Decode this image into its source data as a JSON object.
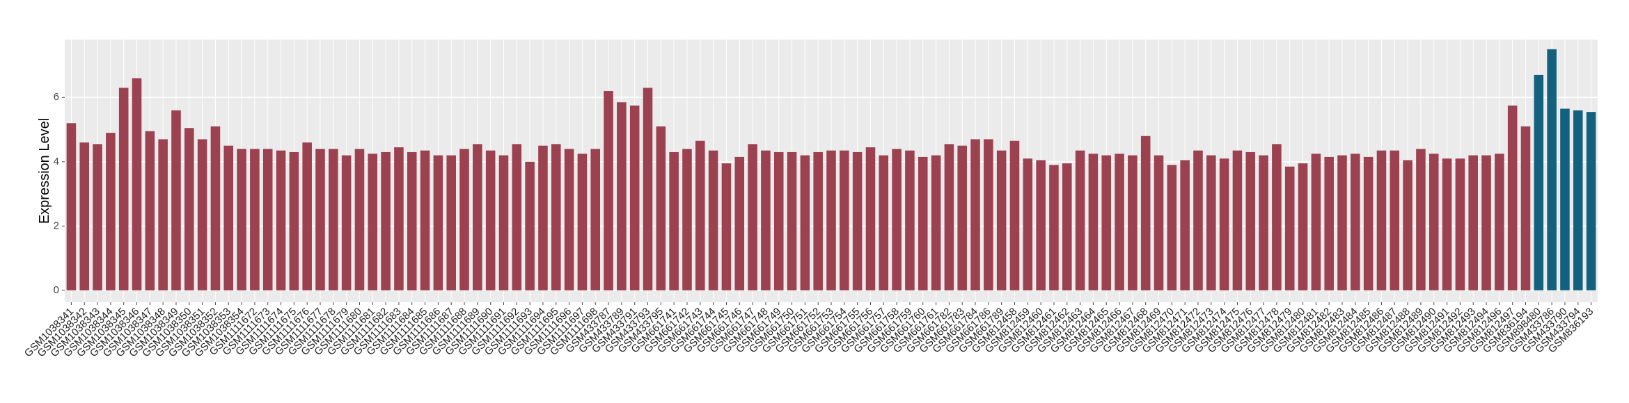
{
  "chart_data": {
    "type": "bar",
    "y_label": "Expression Level",
    "categories": [
      "GSM1038341",
      "GSM1038342",
      "GSM1038343",
      "GSM1038344",
      "GSM1038345",
      "GSM1038346",
      "GSM1038347",
      "GSM1038348",
      "GSM1038349",
      "GSM1038350",
      "GSM1038351",
      "GSM1038352",
      "GSM1038353",
      "GSM1038354",
      "GSM1111672",
      "GSM1111673",
      "GSM1111674",
      "GSM1111675",
      "GSM1111676",
      "GSM1111677",
      "GSM1111678",
      "GSM1111679",
      "GSM1111680",
      "GSM1111681",
      "GSM1111682",
      "GSM1111683",
      "GSM1111684",
      "GSM1111685",
      "GSM1111686",
      "GSM1111687",
      "GSM1111688",
      "GSM1111689",
      "GSM1111690",
      "GSM1111691",
      "GSM1111692",
      "GSM1111693",
      "GSM1111694",
      "GSM1111695",
      "GSM1111696",
      "GSM1111697",
      "GSM1111698",
      "GSM433787",
      "GSM433789",
      "GSM433791",
      "GSM433793",
      "GSM433795",
      "GSM661741",
      "GSM661742",
      "GSM661743",
      "GSM661744",
      "GSM661745",
      "GSM661746",
      "GSM661747",
      "GSM661748",
      "GSM661749",
      "GSM661750",
      "GSM661751",
      "GSM661752",
      "GSM661753",
      "GSM661754",
      "GSM661755",
      "GSM661756",
      "GSM661757",
      "GSM661758",
      "GSM661759",
      "GSM661760",
      "GSM661761",
      "GSM661782",
      "GSM661783",
      "GSM661784",
      "GSM661786",
      "GSM661789",
      "GSM812458",
      "GSM812459",
      "GSM812460",
      "GSM812461",
      "GSM812462",
      "GSM812463",
      "GSM812464",
      "GSM812465",
      "GSM812466",
      "GSM812467",
      "GSM812468",
      "GSM812469",
      "GSM812470",
      "GSM812471",
      "GSM812472",
      "GSM812473",
      "GSM812474",
      "GSM812475",
      "GSM812476",
      "GSM812477",
      "GSM812478",
      "GSM812479",
      "GSM812480",
      "GSM812481",
      "GSM812482",
      "GSM812483",
      "GSM812484",
      "GSM812485",
      "GSM812486",
      "GSM812487",
      "GSM812488",
      "GSM812489",
      "GSM812490",
      "GSM812491",
      "GSM812492",
      "GSM812493",
      "GSM812494",
      "GSM812496",
      "GSM812497",
      "GSM836194",
      "GSM898480",
      "GSM433786",
      "GSM433790",
      "GSM433794",
      "GSM836193"
    ],
    "values": [
      5.2,
      4.6,
      4.55,
      4.9,
      6.3,
      6.6,
      4.95,
      4.7,
      5.6,
      5.05,
      4.7,
      5.1,
      4.5,
      4.4,
      4.4,
      4.4,
      4.35,
      4.3,
      4.6,
      4.4,
      4.4,
      4.2,
      4.4,
      4.25,
      4.3,
      4.45,
      4.3,
      4.35,
      4.2,
      4.2,
      4.4,
      4.55,
      4.35,
      4.2,
      4.55,
      4.0,
      4.5,
      4.55,
      4.4,
      4.25,
      4.4,
      6.2,
      5.85,
      5.75,
      6.3,
      5.1,
      4.3,
      4.4,
      4.65,
      4.35,
      3.95,
      4.15,
      4.55,
      4.35,
      4.3,
      4.3,
      4.2,
      4.3,
      4.35,
      4.35,
      4.3,
      4.45,
      4.2,
      4.4,
      4.35,
      4.15,
      4.2,
      4.55,
      4.5,
      4.7,
      4.7,
      4.35,
      4.65,
      4.1,
      4.05,
      3.9,
      3.95,
      4.35,
      4.25,
      4.2,
      4.25,
      4.2,
      4.8,
      4.2,
      3.9,
      4.05,
      4.35,
      4.2,
      4.1,
      4.35,
      4.3,
      4.2,
      4.55,
      3.85,
      3.95,
      4.25,
      4.15,
      4.2,
      4.25,
      4.15,
      4.35,
      4.35,
      4.05,
      4.4,
      4.25,
      4.1,
      4.1,
      4.2,
      4.2,
      4.25,
      5.75,
      5.1,
      6.7,
      7.5,
      5.65,
      5.6,
      5.55
    ],
    "colors": [
      "#9b4150",
      "#9b4150",
      "#9b4150",
      "#9b4150",
      "#9b4150",
      "#9b4150",
      "#9b4150",
      "#9b4150",
      "#9b4150",
      "#9b4150",
      "#9b4150",
      "#9b4150",
      "#9b4150",
      "#9b4150",
      "#9b4150",
      "#9b4150",
      "#9b4150",
      "#9b4150",
      "#9b4150",
      "#9b4150",
      "#9b4150",
      "#9b4150",
      "#9b4150",
      "#9b4150",
      "#9b4150",
      "#9b4150",
      "#9b4150",
      "#9b4150",
      "#9b4150",
      "#9b4150",
      "#9b4150",
      "#9b4150",
      "#9b4150",
      "#9b4150",
      "#9b4150",
      "#9b4150",
      "#9b4150",
      "#9b4150",
      "#9b4150",
      "#9b4150",
      "#9b4150",
      "#9b4150",
      "#9b4150",
      "#9b4150",
      "#9b4150",
      "#9b4150",
      "#9b4150",
      "#9b4150",
      "#9b4150",
      "#9b4150",
      "#9b4150",
      "#9b4150",
      "#9b4150",
      "#9b4150",
      "#9b4150",
      "#9b4150",
      "#9b4150",
      "#9b4150",
      "#9b4150",
      "#9b4150",
      "#9b4150",
      "#9b4150",
      "#9b4150",
      "#9b4150",
      "#9b4150",
      "#9b4150",
      "#9b4150",
      "#9b4150",
      "#9b4150",
      "#9b4150",
      "#9b4150",
      "#9b4150",
      "#9b4150",
      "#9b4150",
      "#9b4150",
      "#9b4150",
      "#9b4150",
      "#9b4150",
      "#9b4150",
      "#9b4150",
      "#9b4150",
      "#9b4150",
      "#9b4150",
      "#9b4150",
      "#9b4150",
      "#9b4150",
      "#9b4150",
      "#9b4150",
      "#9b4150",
      "#9b4150",
      "#9b4150",
      "#9b4150",
      "#9b4150",
      "#9b4150",
      "#9b4150",
      "#9b4150",
      "#9b4150",
      "#9b4150",
      "#9b4150",
      "#9b4150",
      "#9b4150",
      "#9b4150",
      "#9b4150",
      "#9b4150",
      "#9b4150",
      "#9b4150",
      "#9b4150",
      "#9b4150",
      "#9b4150",
      "#9b4150",
      "#9b4150",
      "#9b4150",
      "#14617f",
      "#14617f",
      "#14617f",
      "#14617f",
      "#14617f"
    ],
    "ylim": [
      -0.37,
      7.8
    ],
    "yticks": [
      0,
      2,
      4,
      6
    ],
    "grid": true
  }
}
